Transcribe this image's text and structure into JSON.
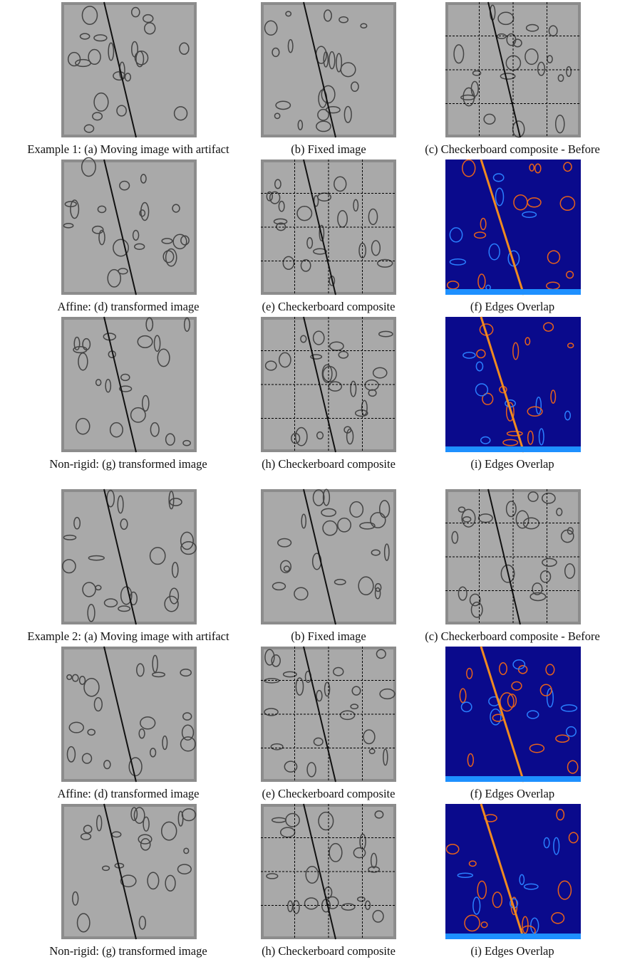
{
  "examples": [
    {
      "rows": [
        [
          "Example 1: (a) Moving image with artifact",
          "(b) Fixed image",
          "(c) Checkerboard composite - Before"
        ],
        [
          "Affine: (d) transformed image",
          "(e) Checkerboard composite",
          "(f) Edges Overlap"
        ],
        [
          "Non-rigid: (g) transformed image",
          "(h) Checkerboard composite",
          "(i) Edges Overlap"
        ]
      ]
    },
    {
      "rows": [
        [
          "Example 2: (a) Moving image with artifact",
          "(b) Fixed image",
          "(c) Checkerboard composite - Before"
        ],
        [
          "Affine: (d) transformed image",
          "(e) Checkerboard composite",
          "(f) Edges Overlap"
        ],
        [
          "Non-rigid: (g) transformed image",
          "(h) Checkerboard composite",
          "(i) Edges Overlap"
        ]
      ]
    }
  ]
}
